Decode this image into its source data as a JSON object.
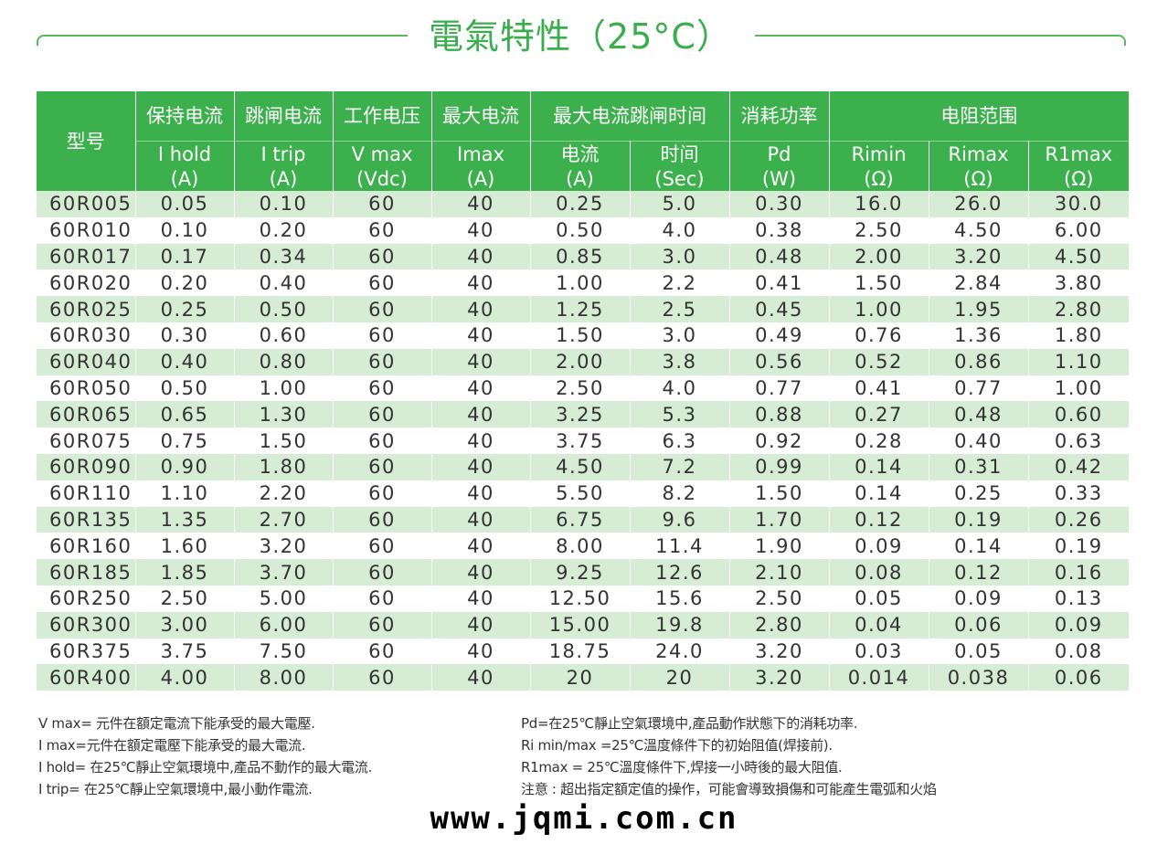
{
  "title": "電氣特性（25°C）",
  "headers": {
    "model": "型号",
    "hold_cn": "保持电流",
    "hold_sym": "I hold",
    "hold_unit": "(A)",
    "trip_cn": "跳闸电流",
    "trip_sym": "I trip",
    "trip_unit": "(A)",
    "volt_cn": "工作电压",
    "volt_sym": "V max",
    "volt_unit": "(Vdc)",
    "imax_cn": "最大电流",
    "imax_sym": "Imax",
    "imax_unit": "(A)",
    "triptime_cn": "最大电流跳闸时间",
    "tt_current": "电流",
    "tt_current_unit": "(A)",
    "tt_time": "时间",
    "tt_time_unit": "(Sec)",
    "pd_cn": "消耗功率",
    "pd_sym": "Pd",
    "pd_unit": "(W)",
    "res_cn": "电阻范围",
    "rmin": "Rimin",
    "rmin_unit": "(Ω)",
    "rmax": "Rimax",
    "rmax_unit": "(Ω)",
    "r1max": "R1max",
    "r1max_unit": "(Ω)"
  },
  "rows": [
    [
      "60R005",
      "0.05",
      "0.10",
      "60",
      "40",
      "0.25",
      "5.0",
      "0.30",
      "16.0",
      "26.0",
      "30.0"
    ],
    [
      "60R010",
      "0.10",
      "0.20",
      "60",
      "40",
      "0.50",
      "4.0",
      "0.38",
      "2.50",
      "4.50",
      "6.00"
    ],
    [
      "60R017",
      "0.17",
      "0.34",
      "60",
      "40",
      "0.85",
      "3.0",
      "0.48",
      "2.00",
      "3.20",
      "4.50"
    ],
    [
      "60R020",
      "0.20",
      "0.40",
      "60",
      "40",
      "1.00",
      "2.2",
      "0.41",
      "1.50",
      "2.84",
      "3.80"
    ],
    [
      "60R025",
      "0.25",
      "0.50",
      "60",
      "40",
      "1.25",
      "2.5",
      "0.45",
      "1.00",
      "1.95",
      "2.80"
    ],
    [
      "60R030",
      "0.30",
      "0.60",
      "60",
      "40",
      "1.50",
      "3.0",
      "0.49",
      "0.76",
      "1.36",
      "1.80"
    ],
    [
      "60R040",
      "0.40",
      "0.80",
      "60",
      "40",
      "2.00",
      "3.8",
      "0.56",
      "0.52",
      "0.86",
      "1.10"
    ],
    [
      "60R050",
      "0.50",
      "1.00",
      "60",
      "40",
      "2.50",
      "4.0",
      "0.77",
      "0.41",
      "0.77",
      "1.00"
    ],
    [
      "60R065",
      "0.65",
      "1.30",
      "60",
      "40",
      "3.25",
      "5.3",
      "0.88",
      "0.27",
      "0.48",
      "0.60"
    ],
    [
      "60R075",
      "0.75",
      "1.50",
      "60",
      "40",
      "3.75",
      "6.3",
      "0.92",
      "0.28",
      "0.40",
      "0.63"
    ],
    [
      "60R090",
      "0.90",
      "1.80",
      "60",
      "40",
      "4.50",
      "7.2",
      "0.99",
      "0.14",
      "0.31",
      "0.42"
    ],
    [
      "60R110",
      "1.10",
      "2.20",
      "60",
      "40",
      "5.50",
      "8.2",
      "1.50",
      "0.14",
      "0.25",
      "0.33"
    ],
    [
      "60R135",
      "1.35",
      "2.70",
      "60",
      "40",
      "6.75",
      "9.6",
      "1.70",
      "0.12",
      "0.19",
      "0.26"
    ],
    [
      "60R160",
      "1.60",
      "3.20",
      "60",
      "40",
      "8.00",
      "11.4",
      "1.90",
      "0.09",
      "0.14",
      "0.19"
    ],
    [
      "60R185",
      "1.85",
      "3.70",
      "60",
      "40",
      "9.25",
      "12.6",
      "2.10",
      "0.08",
      "0.12",
      "0.16"
    ],
    [
      "60R250",
      "2.50",
      "5.00",
      "60",
      "40",
      "12.50",
      "15.6",
      "2.50",
      "0.05",
      "0.09",
      "0.13"
    ],
    [
      "60R300",
      "3.00",
      "6.00",
      "60",
      "40",
      "15.00",
      "19.8",
      "2.80",
      "0.04",
      "0.06",
      "0.09"
    ],
    [
      "60R375",
      "3.75",
      "7.50",
      "60",
      "40",
      "18.75",
      "24.0",
      "3.20",
      "0.03",
      "0.05",
      "0.08"
    ],
    [
      "60R400",
      "4.00",
      "8.00",
      "60",
      "40",
      "20",
      "20",
      "3.20",
      "0.014",
      "0.038",
      "0.06"
    ]
  ],
  "notes_left": [
    "V max= 元件在額定電流下能承受的最大電壓.",
    "I max=元件在額定電壓下能承受的最大電流.",
    "I hold= 在25℃靜止空氣環境中,產品不動作的最大電流.",
    "I trip= 在25℃靜止空氣環境中,最小動作電流."
  ],
  "notes_right": [
    "Pd=在25℃靜止空氣環境中,產品動作狀態下的消耗功率.",
    "Ri min/max  =25℃溫度條件下的初始阻值(焊接前).",
    "R1max  = 25℃溫度條件下,焊接一小時後的最大阻值.",
    "注意 : 超出指定額定值的操作，可能會導致損傷和可能產生電弧和火焰"
  ],
  "website": "www.jqmi.com.cn",
  "colors": {
    "accent": "#3cb04c",
    "row_alt": "#d6ecd4",
    "title": "#3aae4c"
  }
}
